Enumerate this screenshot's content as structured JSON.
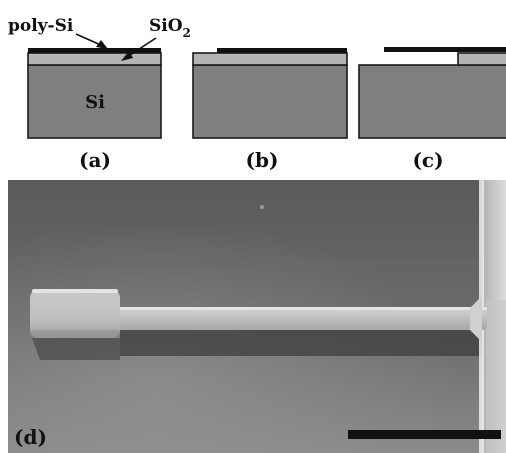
{
  "labels": {
    "poly_si": "poly-Si",
    "sio2_base": "SiO",
    "sio2_sub": "2",
    "substrate": "Si"
  },
  "panels": {
    "a": "(a)",
    "b": "(b)",
    "c": "(c)",
    "d": "(d)"
  },
  "colors": {
    "silicon": "#7f7f7f",
    "oxide": "#b4b4b4",
    "poly_si": "#111111",
    "outline": "#1a1a1a",
    "scale_bar": "#111111"
  },
  "icons": {
    "arrow": "arrow-icon"
  }
}
